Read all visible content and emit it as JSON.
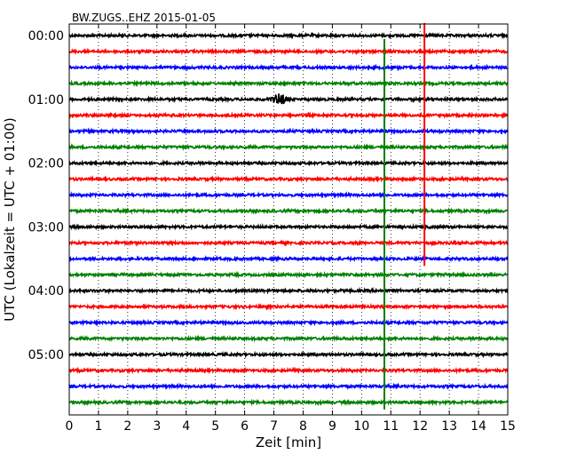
{
  "chart_data": {
    "type": "line",
    "chart_kind": "seismogram-dayplot",
    "title": "BW.ZUGS..EHZ 2015-01-05",
    "xlabel": "Zeit  [min]",
    "ylabel": "UTC (Lokalzeit = UTC + 01:00)",
    "xlim": [
      0,
      15
    ],
    "x_ticks": [
      "0",
      "1",
      "2",
      "3",
      "4",
      "5",
      "6",
      "7",
      "8",
      "9",
      "10",
      "11",
      "12",
      "13",
      "14",
      "15"
    ],
    "y_ticks": [
      "00:00",
      "01:00",
      "02:00",
      "03:00",
      "04:00",
      "05:00"
    ],
    "row_interval_minutes": 15,
    "grid": "vertical dotted",
    "trace_colors": [
      "#000000",
      "#ff0000",
      "#0000ff",
      "#008000"
    ],
    "traces": [
      {
        "start": "00:00",
        "color": "#000000"
      },
      {
        "start": "00:15",
        "color": "#ff0000"
      },
      {
        "start": "00:30",
        "color": "#0000ff"
      },
      {
        "start": "00:45",
        "color": "#008000"
      },
      {
        "start": "01:00",
        "color": "#000000",
        "event": {
          "time_min": 7.2,
          "amplitude": "small"
        }
      },
      {
        "start": "01:15",
        "color": "#ff0000"
      },
      {
        "start": "01:30",
        "color": "#0000ff"
      },
      {
        "start": "01:45",
        "color": "#008000"
      },
      {
        "start": "02:00",
        "color": "#000000"
      },
      {
        "start": "02:15",
        "color": "#ff0000"
      },
      {
        "start": "02:30",
        "color": "#0000ff"
      },
      {
        "start": "02:45",
        "color": "#008000"
      },
      {
        "start": "03:00",
        "color": "#000000"
      },
      {
        "start": "03:15",
        "color": "#ff0000"
      },
      {
        "start": "03:30",
        "color": "#0000ff"
      },
      {
        "start": "03:45",
        "color": "#008000"
      },
      {
        "start": "04:00",
        "color": "#000000"
      },
      {
        "start": "04:15",
        "color": "#ff0000"
      },
      {
        "start": "04:30",
        "color": "#0000ff"
      },
      {
        "start": "04:45",
        "color": "#008000"
      },
      {
        "start": "05:00",
        "color": "#000000"
      },
      {
        "start": "05:15",
        "color": "#ff0000"
      },
      {
        "start": "05:30",
        "color": "#0000ff"
      },
      {
        "start": "05:45",
        "color": "#008000"
      }
    ],
    "markers": [
      {
        "time_min": 12.15,
        "color": "#ff0000",
        "from": "00:00",
        "to": "03:30"
      },
      {
        "time_min": 10.78,
        "color": "#008000",
        "from": "00:15",
        "to": "05:45"
      }
    ]
  }
}
